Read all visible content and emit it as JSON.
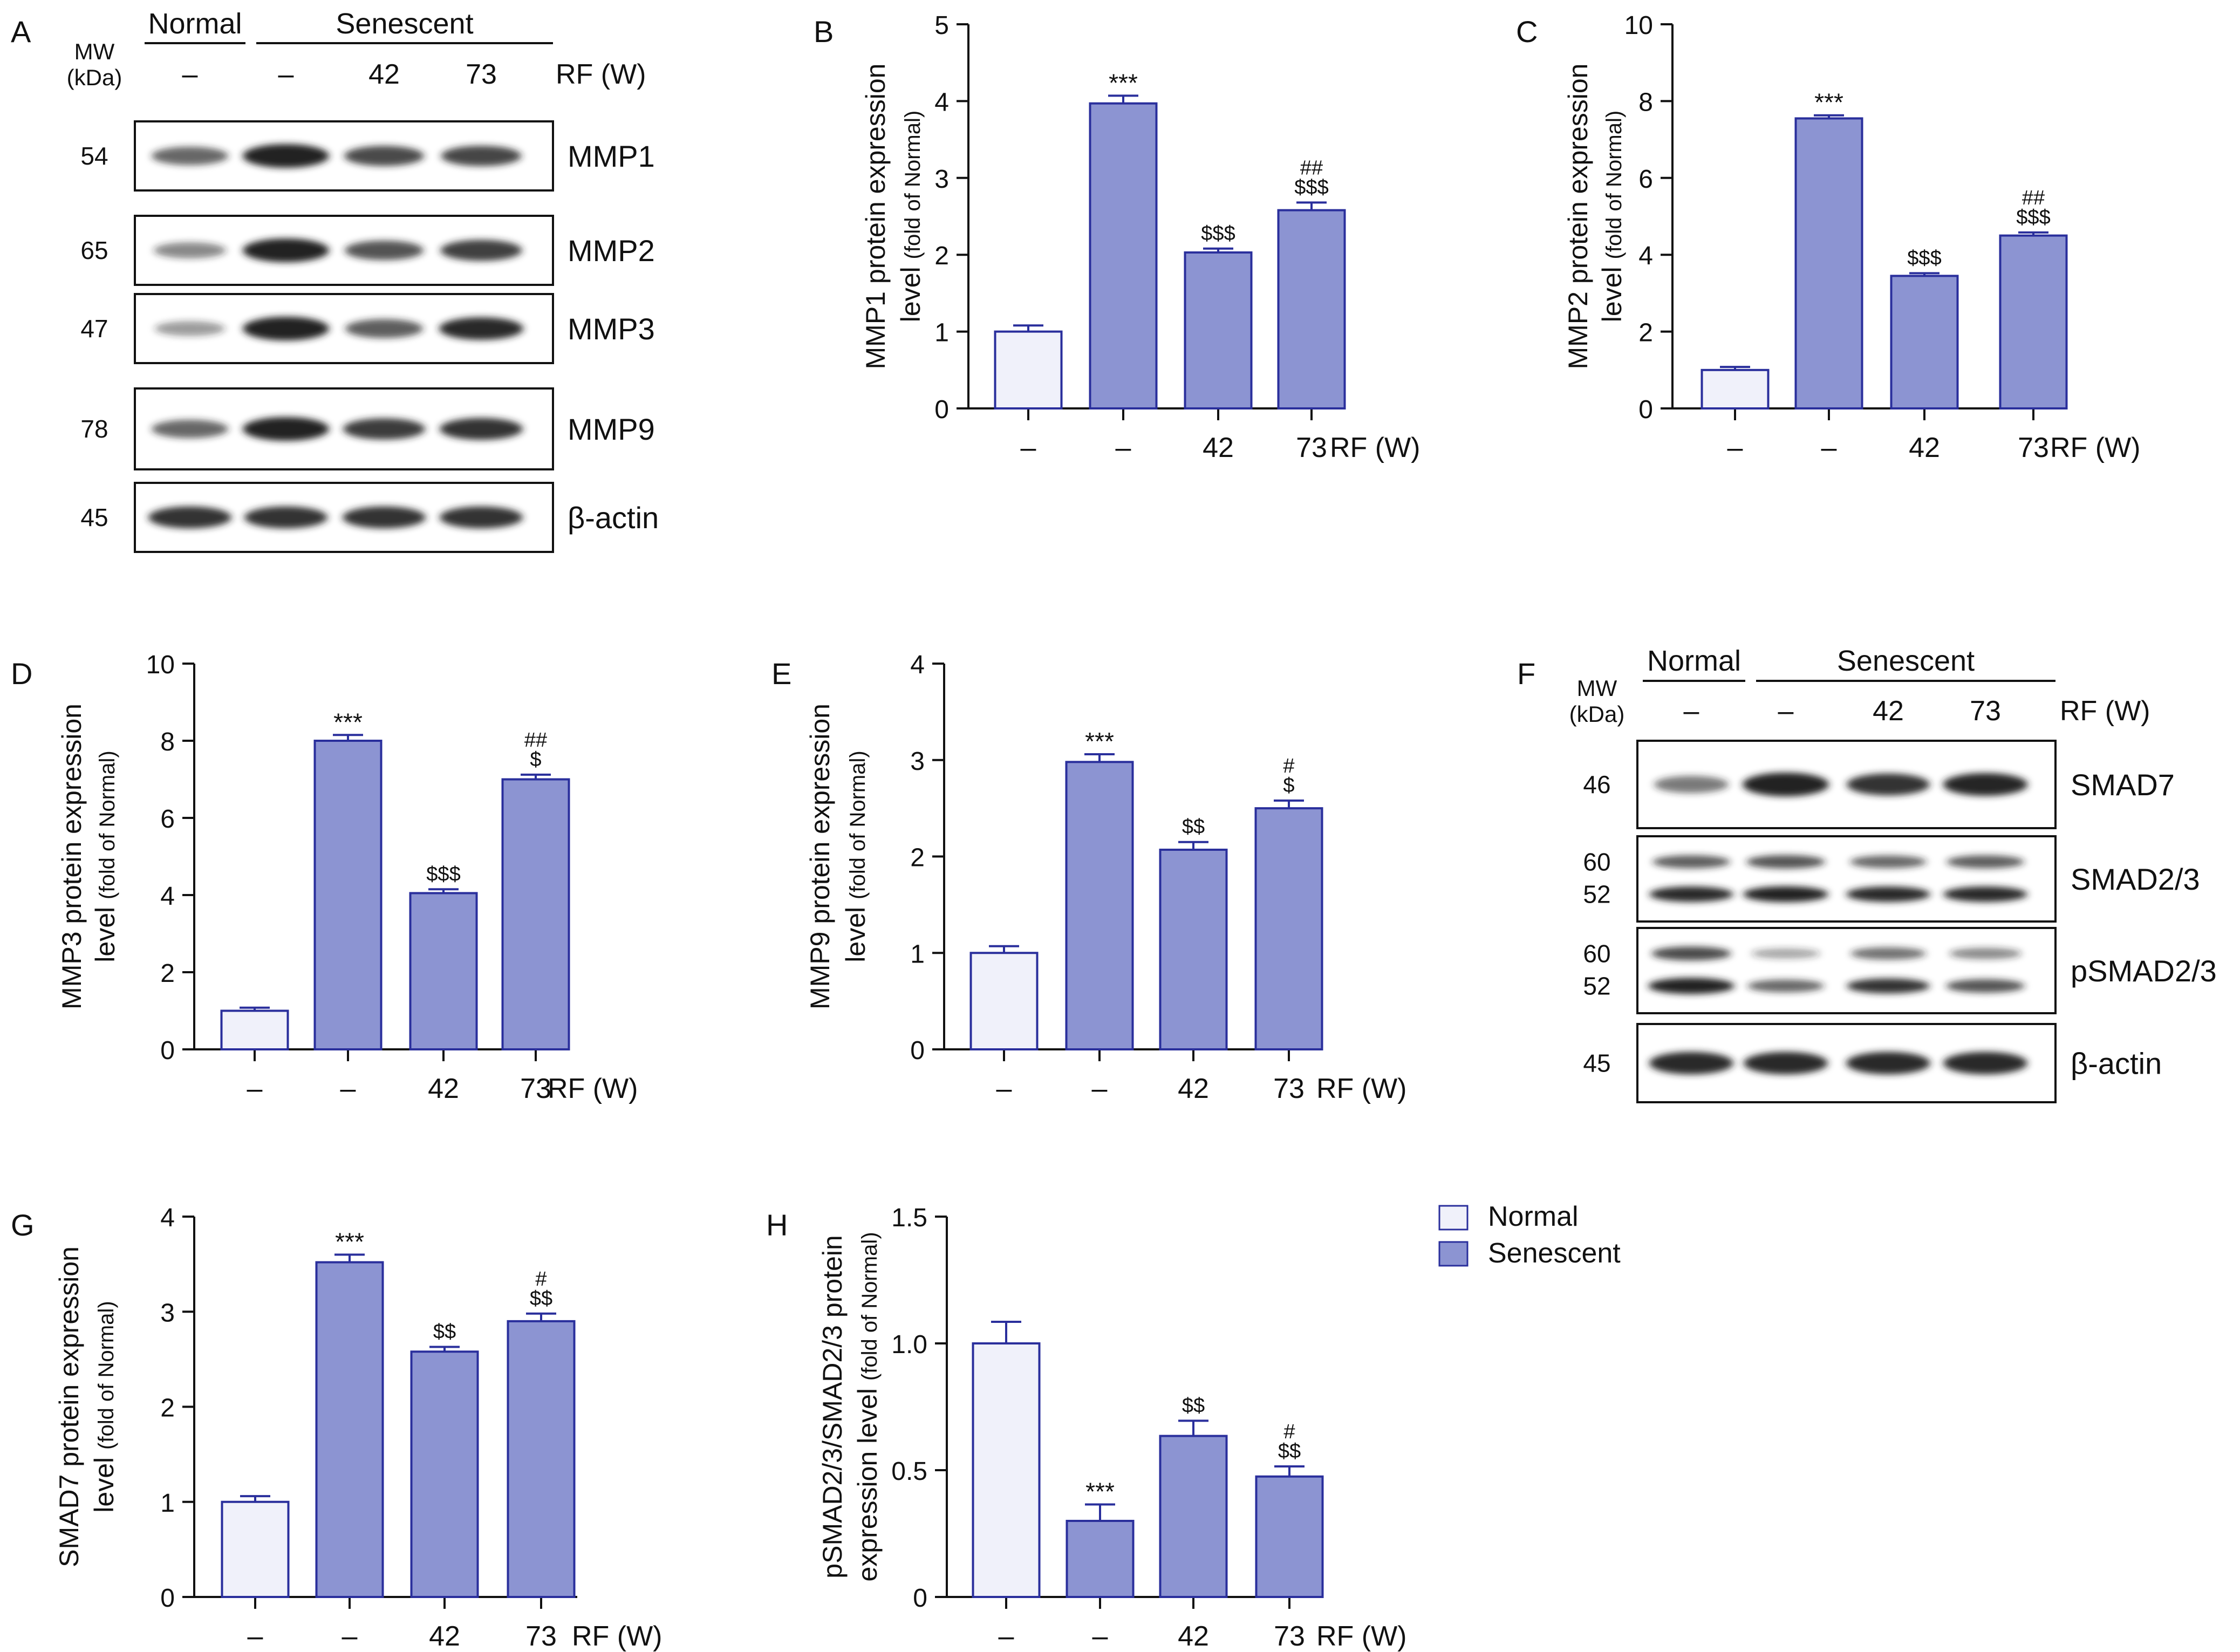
{
  "figure": {
    "colors": {
      "normal_fill": "#f0f1fa",
      "senescent_fill": "#8c94d2",
      "bar_stroke": "#2a2f9c",
      "axis": "#111111",
      "blot_band": "#222222"
    },
    "legend": {
      "items": [
        {
          "label": "Normal",
          "fill": "#f0f1fa"
        },
        {
          "label": "Senescent",
          "fill": "#8c94d2"
        }
      ]
    }
  },
  "blots": [
    {
      "panel": "A",
      "header": {
        "normal": "Normal",
        "senescent": "Senescent"
      },
      "mw_label": [
        "MW",
        "(kDa)"
      ],
      "lane_labels": [
        "–",
        "–",
        "42",
        "73"
      ],
      "rf_label": "RF (W)",
      "rows": [
        {
          "name": "MMP1",
          "mw": [
            "54"
          ],
          "intensity": [
            [
              0.55,
              1.0,
              0.7,
              0.72
            ]
          ]
        },
        {
          "name": "MMP2",
          "mw": [
            "65"
          ],
          "intensity": [
            [
              0.35,
              1.0,
              0.65,
              0.78
            ]
          ]
        },
        {
          "name": "MMP3",
          "mw": [
            "47"
          ],
          "intensity": [
            [
              0.25,
              1.0,
              0.6,
              0.9
            ]
          ]
        },
        {
          "name": "MMP9",
          "mw": [
            "78"
          ],
          "intensity": [
            [
              0.55,
              1.0,
              0.8,
              0.85
            ]
          ]
        },
        {
          "name": "β-actin",
          "mw": [
            "45"
          ],
          "intensity": [
            [
              0.85,
              0.85,
              0.85,
              0.85
            ]
          ]
        }
      ]
    },
    {
      "panel": "F",
      "header": {
        "normal": "Normal",
        "senescent": "Senescent"
      },
      "mw_label": [
        "MW",
        "(kDa)"
      ],
      "lane_labels": [
        "–",
        "–",
        "42",
        "73"
      ],
      "rf_label": "RF (W)",
      "rows": [
        {
          "name": "SMAD7",
          "mw": [
            "46"
          ],
          "intensity": [
            [
              0.45,
              1.0,
              0.85,
              0.92
            ]
          ]
        },
        {
          "name": "SMAD2/3",
          "mw": [
            "60",
            "52"
          ],
          "intensity": [
            [
              0.6,
              0.65,
              0.55,
              0.6
            ],
            [
              0.9,
              0.95,
              0.9,
              0.9
            ]
          ]
        },
        {
          "name": "pSMAD2/3",
          "mw": [
            "60",
            "52"
          ],
          "intensity": [
            [
              0.7,
              0.2,
              0.5,
              0.35
            ],
            [
              1.0,
              0.55,
              0.85,
              0.65
            ]
          ]
        },
        {
          "name": "β-actin",
          "mw": [
            "45"
          ],
          "intensity": [
            [
              0.9,
              0.9,
              0.9,
              0.9
            ]
          ]
        }
      ]
    }
  ],
  "chart_data": [
    {
      "panel": "B",
      "type": "bar",
      "ylabel_main": "MMP1 protein expression",
      "ylabel_sub": "level",
      "ylabel_small": "(fold of Normal)",
      "categories": [
        "–",
        "–",
        "42",
        "73"
      ],
      "rf_label": "RF (W)",
      "groups": [
        "Normal",
        "Senescent",
        "Senescent",
        "Senescent"
      ],
      "values": [
        1.0,
        3.97,
        2.03,
        2.58
      ],
      "errors": [
        0.08,
        0.1,
        0.05,
        0.1
      ],
      "annotations": [
        [],
        [
          "***"
        ],
        [
          "$$$"
        ],
        [
          "##",
          "$$$"
        ]
      ],
      "ylim": [
        0,
        5
      ],
      "yticks": [
        0,
        1,
        2,
        3,
        4,
        5
      ],
      "ytick_labels": [
        "0",
        "1",
        "2",
        "3",
        "4",
        "5"
      ]
    },
    {
      "panel": "C",
      "type": "bar",
      "ylabel_main": "MMP2 protein expression",
      "ylabel_sub": "level",
      "ylabel_small": "(fold of Normal)",
      "categories": [
        "–",
        "–",
        "42",
        "73"
      ],
      "rf_label": "RF (W)",
      "groups": [
        "Normal",
        "Senescent",
        "Senescent",
        "Senescent"
      ],
      "values": [
        1.0,
        7.55,
        3.45,
        4.5
      ],
      "errors": [
        0.08,
        0.08,
        0.07,
        0.08
      ],
      "annotations": [
        [],
        [
          "***"
        ],
        [
          "$$$"
        ],
        [
          "##",
          "$$$"
        ]
      ],
      "ylim": [
        0,
        10
      ],
      "yticks": [
        0,
        2,
        4,
        6,
        8,
        10
      ],
      "ytick_labels": [
        "0",
        "2",
        "4",
        "6",
        "8",
        "10"
      ]
    },
    {
      "panel": "D",
      "type": "bar",
      "ylabel_main": "MMP3 protein expression",
      "ylabel_sub": "level",
      "ylabel_small": "(fold of Normal)",
      "categories": [
        "–",
        "–",
        "42",
        "73"
      ],
      "rf_label": "RF (W)",
      "groups": [
        "Normal",
        "Senescent",
        "Senescent",
        "Senescent"
      ],
      "values": [
        1.0,
        8.0,
        4.05,
        7.0
      ],
      "errors": [
        0.08,
        0.15,
        0.1,
        0.12
      ],
      "annotations": [
        [],
        [
          "***"
        ],
        [
          "$$$"
        ],
        [
          "##",
          "$"
        ]
      ],
      "ylim": [
        0,
        10
      ],
      "yticks": [
        0,
        2,
        4,
        6,
        8,
        10
      ],
      "ytick_labels": [
        "0",
        "2",
        "4",
        "6",
        "8",
        "10"
      ]
    },
    {
      "panel": "E",
      "type": "bar",
      "ylabel_main": "MMP9 protein expression",
      "ylabel_sub": "level",
      "ylabel_small": "(fold of Normal)",
      "categories": [
        "–",
        "–",
        "42",
        "73"
      ],
      "rf_label": "RF (W)",
      "groups": [
        "Normal",
        "Senescent",
        "Senescent",
        "Senescent"
      ],
      "values": [
        1.0,
        2.98,
        2.07,
        2.5
      ],
      "errors": [
        0.07,
        0.08,
        0.08,
        0.08
      ],
      "annotations": [
        [],
        [
          "***"
        ],
        [
          "$$"
        ],
        [
          "#",
          "$"
        ]
      ],
      "ylim": [
        0,
        4
      ],
      "yticks": [
        0,
        1,
        2,
        3,
        4
      ],
      "ytick_labels": [
        "0",
        "1",
        "2",
        "3",
        "4"
      ]
    },
    {
      "panel": "G",
      "type": "bar",
      "ylabel_main": "SMAD7 protein expression",
      "ylabel_sub": "level",
      "ylabel_small": "(fold of Normal)",
      "categories": [
        "–",
        "–",
        "42",
        "73"
      ],
      "rf_label": "RF (W)",
      "groups": [
        "Normal",
        "Senescent",
        "Senescent",
        "Senescent"
      ],
      "values": [
        1.0,
        3.52,
        2.58,
        2.9
      ],
      "errors": [
        0.06,
        0.08,
        0.05,
        0.08
      ],
      "annotations": [
        [],
        [
          "***"
        ],
        [
          "$$"
        ],
        [
          "#",
          "$$"
        ]
      ],
      "ylim": [
        0,
        4
      ],
      "yticks": [
        0,
        1,
        2,
        3,
        4
      ],
      "ytick_labels": [
        "0",
        "1",
        "2",
        "3",
        "4"
      ]
    },
    {
      "panel": "H",
      "type": "bar",
      "ylabel_main": "pSMAD2/3/SMAD2/3 protein",
      "ylabel_sub": "expression level",
      "ylabel_small": "(fold of Normal)",
      "categories": [
        "–",
        "–",
        "42",
        "73"
      ],
      "rf_label": "RF (W)",
      "groups": [
        "Normal",
        "Senescent",
        "Senescent",
        "Senescent"
      ],
      "values": [
        1.0,
        0.3,
        0.635,
        0.475
      ],
      "errors": [
        0.085,
        0.065,
        0.06,
        0.04
      ],
      "annotations": [
        [],
        [
          "***"
        ],
        [
          "$$"
        ],
        [
          "#",
          "$$"
        ]
      ],
      "ylim": [
        0,
        1.5
      ],
      "yticks": [
        0,
        0.5,
        1.0,
        1.5
      ],
      "ytick_labels": [
        "0",
        "0.5",
        "1.0",
        "1.5"
      ]
    }
  ]
}
